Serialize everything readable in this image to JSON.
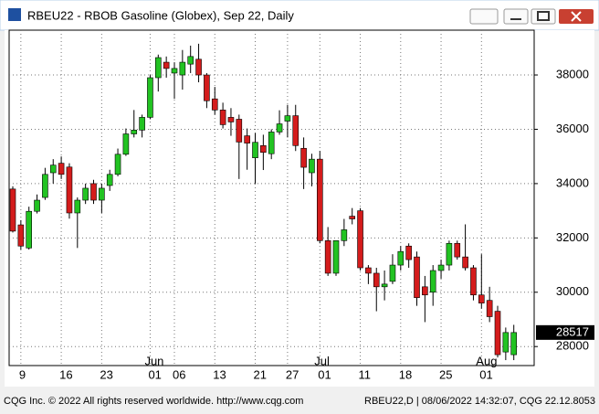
{
  "window_title": "RBEU22 - RBOB Gasoline (Globex), Sep 22, Daily",
  "footer_left": "CQG Inc. © 2022 All rights reserved worldwide. http://www.cqg.com",
  "footer_right": "RBEU22,D | 08/06/2022 14:32:07, CQG 22.12.8053",
  "chart_data": {
    "type": "candlestick",
    "categories": [
      null,
      "9",
      null,
      null,
      null,
      null,
      "16",
      null,
      null,
      null,
      null,
      "23",
      null,
      null,
      null,
      null,
      null,
      "01",
      null,
      null,
      "06",
      null,
      null,
      null,
      null,
      "13",
      null,
      null,
      null,
      null,
      "21",
      null,
      null,
      null,
      "27",
      null,
      null,
      null,
      "01",
      null,
      null,
      null,
      null,
      "11",
      null,
      null,
      null,
      null,
      "18",
      null,
      null,
      null,
      null,
      "25",
      null,
      null,
      null,
      null,
      "01",
      null,
      null,
      null,
      null
    ],
    "month_labels": [
      {
        "category": 17,
        "label": "Jun"
      },
      {
        "category": 38,
        "label": "Jul"
      },
      {
        "category": 58,
        "label": "Aug"
      }
    ],
    "series": [
      {
        "name": "RBEU22",
        "up_color": "#22c322",
        "down_color": "#d41c1c",
        "open": [
          33800,
          32480,
          31630,
          32980,
          33490,
          34400,
          34750,
          34610,
          32920,
          33390,
          34000,
          33390,
          33930,
          34340,
          35080,
          35830,
          35970,
          36440,
          37900,
          38470,
          38070,
          38000,
          38400,
          38580,
          38000,
          37120,
          36710,
          36440,
          36370,
          35760,
          34950,
          35400,
          35100,
          35900,
          36300,
          36500,
          35300,
          34400,
          34900,
          31900,
          30700,
          31900,
          32800,
          33000,
          30900,
          30700,
          30200,
          30400,
          31000,
          31700,
          31300,
          30200,
          30000,
          30800,
          31000,
          31800,
          31300,
          30900,
          29900,
          29700,
          29300,
          27800,
          27700
        ],
        "high": [
          33900,
          32650,
          33150,
          33600,
          34580,
          34900,
          35000,
          34750,
          33490,
          34000,
          34140,
          34000,
          34510,
          35290,
          36030,
          36710,
          36540,
          38000,
          38750,
          38680,
          38470,
          38920,
          39080,
          39150,
          38070,
          37560,
          36980,
          36780,
          36540,
          36030,
          35860,
          35800,
          36000,
          36700,
          36900,
          36900,
          35700,
          35100,
          35200,
          32400,
          31900,
          32700,
          33100,
          33100,
          31000,
          30900,
          30800,
          31400,
          31700,
          31800,
          31500,
          30600,
          31000,
          31200,
          31900,
          31900,
          32500,
          31000,
          31400,
          30200,
          29500,
          28700,
          28800
        ],
        "low": [
          32200,
          31570,
          31570,
          32900,
          33400,
          34000,
          34170,
          32710,
          31630,
          33250,
          33250,
          32920,
          33730,
          34270,
          35020,
          35700,
          35700,
          36370,
          37390,
          37900,
          37120,
          37460,
          38070,
          37730,
          36780,
          36540,
          36030,
          35760,
          34170,
          34510,
          34000,
          34500,
          34900,
          35800,
          35700,
          35200,
          33800,
          33900,
          31800,
          30600,
          30600,
          31700,
          32500,
          30800,
          30300,
          29300,
          29700,
          30300,
          30800,
          30900,
          29500,
          28900,
          29500,
          30500,
          30800,
          31200,
          30800,
          29700,
          29400,
          28900,
          27600,
          27500,
          27500
        ],
        "close": [
          32250,
          31700,
          32980,
          33390,
          34340,
          34680,
          34340,
          32920,
          33390,
          33830,
          33390,
          33830,
          34340,
          35080,
          35830,
          35970,
          36440,
          37900,
          38640,
          38240,
          38240,
          38470,
          38680,
          38000,
          37050,
          36710,
          36170,
          36270,
          35530,
          35490,
          35520,
          35150,
          35900,
          36200,
          36500,
          35400,
          34600,
          34900,
          31900,
          30700,
          31900,
          32300,
          32700,
          30900,
          30700,
          30200,
          30300,
          31000,
          31500,
          31200,
          29800,
          29900,
          30800,
          31000,
          31800,
          31300,
          30900,
          29900,
          29600,
          29100,
          27700,
          28517,
          28517
        ]
      }
    ],
    "ylim": [
      27300,
      39650
    ],
    "yticks": [
      28000,
      30000,
      32000,
      34000,
      36000,
      38000
    ],
    "grid": true
  }
}
